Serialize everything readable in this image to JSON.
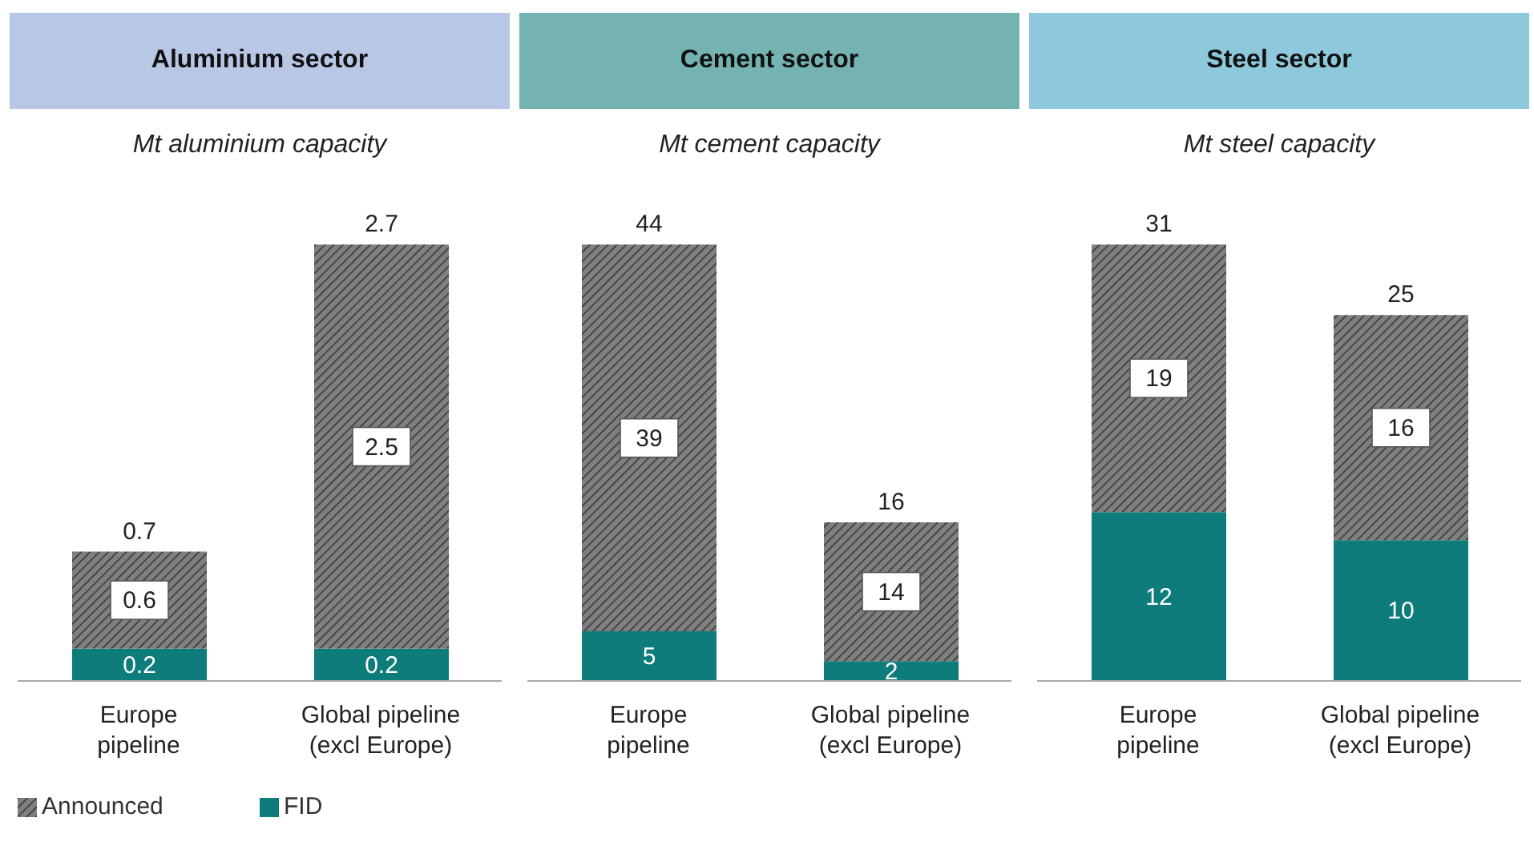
{
  "chart_data": [
    {
      "type": "bar",
      "title": "Aluminium sector",
      "subtitle": "Mt aluminium capacity",
      "categories": [
        "Europe pipeline",
        "Global pipeline (excl Europe)"
      ],
      "stacked": true,
      "data_labels": true,
      "totals": [
        "0.7",
        "2.7"
      ],
      "legend": "bottom left",
      "series": [
        {
          "name": "FID",
          "color": "#0e7c7b",
          "values": [
            0.2,
            0.2
          ]
        },
        {
          "name": "Announced",
          "color": "#7f7f7f",
          "values": [
            0.6,
            2.5
          ]
        }
      ]
    },
    {
      "type": "bar",
      "title": "Cement sector",
      "subtitle": "Mt cement capacity",
      "categories": [
        "Europe pipeline",
        "Global pipeline (excl Europe)"
      ],
      "stacked": true,
      "data_labels": true,
      "totals": [
        "44",
        "16"
      ],
      "series": [
        {
          "color": "#0e7c7b",
          "values": [
            5,
            2
          ]
        },
        {
          "color": "#7f7f7f",
          "values": [
            39,
            14
          ]
        }
      ]
    },
    {
      "type": "bar",
      "title": "Steel sector",
      "subtitle": "Mt steel capacity",
      "categories": [
        "Europe pipeline",
        "Global pipeline (excl Europe)"
      ],
      "stacked": true,
      "data_labels": true,
      "totals": [
        "31",
        "25"
      ],
      "series": [
        {
          "color": "#0e7c7b",
          "values": [
            12,
            10
          ]
        },
        {
          "color": "#7f7f7f",
          "values": [
            19,
            16
          ]
        }
      ]
    }
  ]
}
